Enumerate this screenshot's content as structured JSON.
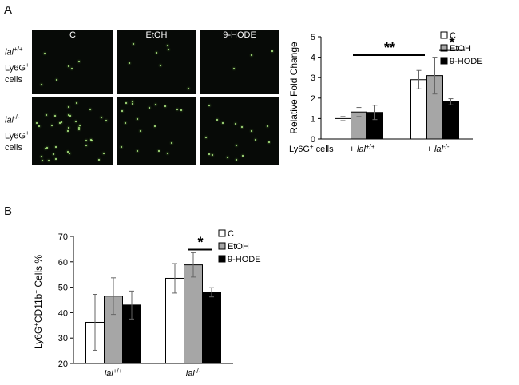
{
  "panel_a": {
    "label": "A",
    "columns": [
      "C",
      "EtOH",
      "9-HODE"
    ],
    "rows": [
      {
        "name": "lal",
        "sup": "+/+",
        "line2": "Ly6G",
        "line2_sup": "+",
        "line3": "cells"
      },
      {
        "name": "lal",
        "sup": "-/-",
        "line2": "Ly6G",
        "line2_sup": "+",
        "line3": "cells"
      }
    ]
  },
  "panel_b": {
    "label": "B"
  },
  "chart_data": [
    {
      "type": "bar",
      "ylabel": "Relative Fold Change",
      "ylim": [
        0,
        5
      ],
      "yticks": [
        "0",
        "1",
        "2",
        "3",
        "4",
        "5"
      ],
      "x_prefix": "Ly6G",
      "x_prefix_sup": "+",
      "x_prefix_tail": "cells",
      "categories": [
        {
          "prefix": "+ ",
          "name": "lal",
          "sup": "+/+"
        },
        {
          "prefix": "+ ",
          "name": "lal",
          "sup": "-/-"
        }
      ],
      "series": [
        {
          "name": "C",
          "values": [
            1.0,
            2.9
          ],
          "errors": [
            0.1,
            0.45
          ],
          "color": "#ffffff"
        },
        {
          "name": "EtOH",
          "values": [
            1.32,
            3.1
          ],
          "errors": [
            0.22,
            0.9
          ],
          "color": "#a6a6a6"
        },
        {
          "name": "9-HODE",
          "values": [
            1.3,
            1.82
          ],
          "errors": [
            0.35,
            0.15
          ],
          "color": "#000000"
        }
      ],
      "annotations": [
        "**",
        "*"
      ],
      "legend": "top-right"
    },
    {
      "type": "bar",
      "ylabel": "Ly6G+CD11b+ Cells %",
      "ylabel_parts": [
        "Ly6G",
        "+",
        "CD11b",
        "+",
        " Cells %"
      ],
      "ylim": [
        20,
        70
      ],
      "yticks": [
        "20",
        "30",
        "40",
        "50",
        "60",
        "70"
      ],
      "categories": [
        {
          "name": "lal",
          "sup": "+/+"
        },
        {
          "name": "lal",
          "sup": "-/-"
        }
      ],
      "series": [
        {
          "name": "C",
          "values": [
            36.2,
            53.5
          ],
          "errors": [
            11.0,
            5.8
          ],
          "color": "#ffffff"
        },
        {
          "name": "EtOH",
          "values": [
            46.5,
            58.8
          ],
          "errors": [
            7.2,
            4.8
          ],
          "color": "#a6a6a6"
        },
        {
          "name": "9-HODE",
          "values": [
            43.0,
            48.0
          ],
          "errors": [
            5.5,
            1.8
          ],
          "color": "#000000"
        }
      ],
      "annotations": [
        "*"
      ],
      "legend": "top-right"
    }
  ]
}
